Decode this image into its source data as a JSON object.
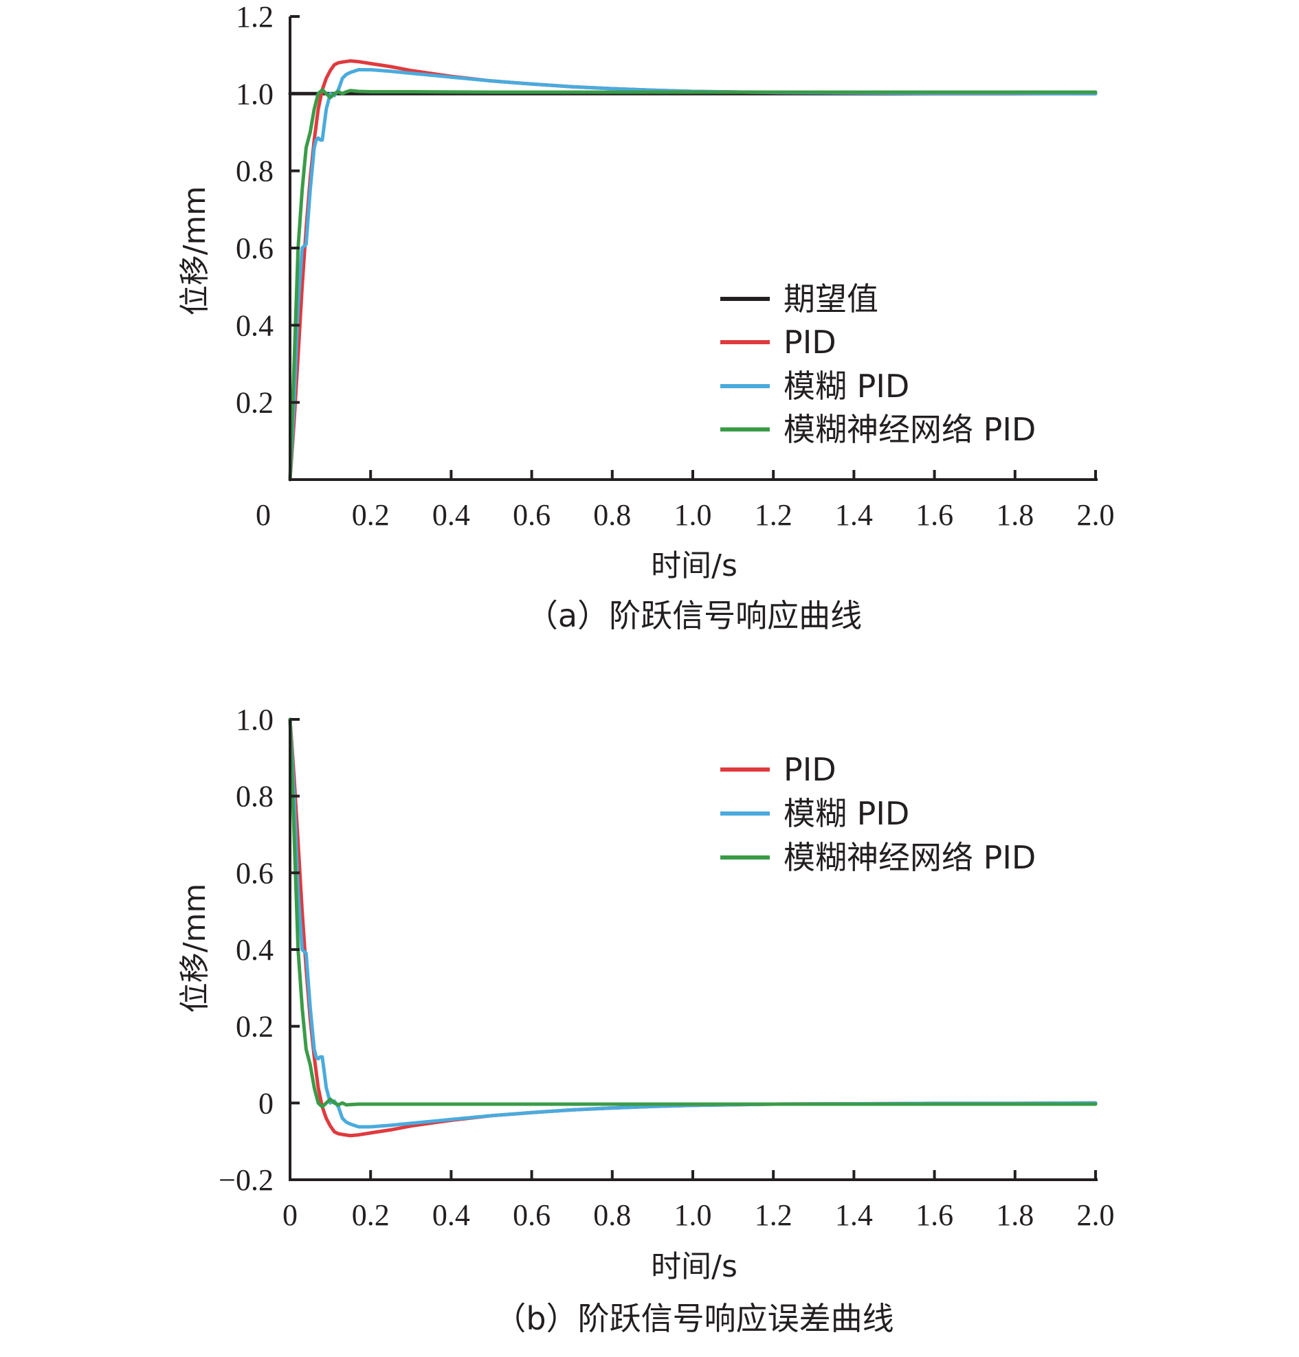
{
  "chart_data": [
    {
      "type": "line",
      "caption": "（a）阶跃信号响应曲线",
      "xlabel": "时间/s",
      "ylabel": "位移/mm",
      "xlim": [
        0,
        2.0
      ],
      "ylim": [
        0,
        1.2
      ],
      "xticks": [
        "0",
        "0.2",
        "0.4",
        "0.6",
        "0.8",
        "1.0",
        "1.2",
        "1.4",
        "1.6",
        "1.8",
        "2.0"
      ],
      "yticks": [
        "0.2",
        "0.4",
        "0.6",
        "0.8",
        "1.0",
        "1.2"
      ],
      "legend_position": "center-right",
      "series": [
        {
          "name": "期望值",
          "color": "#231f20",
          "x": [
            0,
            2.0
          ],
          "y": [
            1.0,
            1.0
          ]
        },
        {
          "name": "PID",
          "color": "#e03a3e",
          "x": [
            0,
            0.01,
            0.02,
            0.03,
            0.04,
            0.05,
            0.06,
            0.07,
            0.08,
            0.09,
            0.1,
            0.11,
            0.12,
            0.13,
            0.15,
            0.17,
            0.2,
            0.25,
            0.3,
            0.4,
            0.5,
            0.6,
            0.7,
            0.8,
            0.9,
            1.0,
            1.2,
            1.4,
            1.6,
            1.8,
            2.0
          ],
          "y": [
            0,
            0.15,
            0.32,
            0.5,
            0.65,
            0.78,
            0.88,
            0.96,
            1.01,
            1.04,
            1.06,
            1.075,
            1.08,
            1.082,
            1.085,
            1.083,
            1.078,
            1.07,
            1.06,
            1.045,
            1.033,
            1.025,
            1.018,
            1.013,
            1.009,
            1.006,
            1.003,
            1.002,
            1.001,
            1.001,
            1.0
          ]
        },
        {
          "name": "模糊 PID",
          "color": "#4aabdd",
          "x": [
            0,
            0.01,
            0.02,
            0.03,
            0.035,
            0.04,
            0.05,
            0.06,
            0.065,
            0.07,
            0.075,
            0.08,
            0.09,
            0.1,
            0.11,
            0.12,
            0.13,
            0.14,
            0.15,
            0.17,
            0.2,
            0.25,
            0.3,
            0.4,
            0.5,
            0.6,
            0.7,
            0.8,
            0.9,
            1.0,
            1.2,
            1.4,
            1.6,
            1.8,
            2.0
          ],
          "y": [
            0,
            0.2,
            0.45,
            0.6,
            0.605,
            0.61,
            0.75,
            0.86,
            0.88,
            0.885,
            0.88,
            0.88,
            0.96,
            1.0,
            0.995,
            1.01,
            1.04,
            1.05,
            1.055,
            1.062,
            1.062,
            1.058,
            1.053,
            1.043,
            1.033,
            1.025,
            1.018,
            1.013,
            1.009,
            1.006,
            1.003,
            1.002,
            1.001,
            1.001,
            1.0
          ]
        },
        {
          "name": "模糊神经网络 PID",
          "color": "#3a9b47",
          "x": [
            0,
            0.01,
            0.02,
            0.03,
            0.04,
            0.05,
            0.06,
            0.07,
            0.08,
            0.09,
            0.1,
            0.11,
            0.12,
            0.13,
            0.14,
            0.15,
            0.17,
            0.2,
            0.3,
            0.5,
            1.0,
            1.5,
            2.0
          ],
          "y": [
            0,
            0.3,
            0.6,
            0.75,
            0.86,
            0.9,
            0.96,
            1.0,
            1.01,
            1.0,
            0.99,
            1.0,
            1.005,
            1.0,
            1.005,
            1.008,
            1.006,
            1.005,
            1.005,
            1.004,
            1.004,
            1.004,
            1.004
          ]
        }
      ]
    },
    {
      "type": "line",
      "caption": "（b）阶跃信号响应误差曲线",
      "xlabel": "时间/s",
      "ylabel": "位移/mm",
      "xlim": [
        0,
        2.0
      ],
      "ylim": [
        -0.2,
        1.0
      ],
      "xticks": [
        "0",
        "0.2",
        "0.4",
        "0.6",
        "0.8",
        "1.0",
        "1.2",
        "1.4",
        "1.6",
        "1.8",
        "2.0"
      ],
      "yticks": [
        "−0.2",
        "0",
        "0.2",
        "0.4",
        "0.6",
        "0.8",
        "1.0"
      ],
      "legend_position": "top-right",
      "series": [
        {
          "name": "PID",
          "color": "#e03a3e",
          "x": [
            0,
            0.01,
            0.02,
            0.03,
            0.04,
            0.05,
            0.06,
            0.07,
            0.08,
            0.09,
            0.1,
            0.11,
            0.12,
            0.13,
            0.15,
            0.17,
            0.2,
            0.25,
            0.3,
            0.4,
            0.5,
            0.6,
            0.7,
            0.8,
            0.9,
            1.0,
            1.2,
            1.4,
            1.6,
            1.8,
            2.0
          ],
          "y": [
            1.0,
            0.85,
            0.68,
            0.5,
            0.35,
            0.22,
            0.12,
            0.04,
            -0.01,
            -0.04,
            -0.06,
            -0.075,
            -0.08,
            -0.082,
            -0.085,
            -0.083,
            -0.078,
            -0.07,
            -0.06,
            -0.045,
            -0.033,
            -0.025,
            -0.018,
            -0.013,
            -0.009,
            -0.006,
            -0.003,
            -0.002,
            -0.001,
            -0.001,
            0.0
          ]
        },
        {
          "name": "模糊 PID",
          "color": "#4aabdd",
          "x": [
            0,
            0.01,
            0.02,
            0.03,
            0.035,
            0.04,
            0.05,
            0.06,
            0.065,
            0.07,
            0.075,
            0.08,
            0.09,
            0.1,
            0.11,
            0.12,
            0.13,
            0.14,
            0.15,
            0.17,
            0.2,
            0.25,
            0.3,
            0.4,
            0.5,
            0.6,
            0.7,
            0.8,
            0.9,
            1.0,
            1.2,
            1.4,
            1.6,
            1.8,
            2.0
          ],
          "y": [
            1.0,
            0.8,
            0.55,
            0.4,
            0.395,
            0.39,
            0.25,
            0.14,
            0.12,
            0.115,
            0.12,
            0.12,
            0.04,
            0.0,
            0.005,
            -0.01,
            -0.04,
            -0.05,
            -0.055,
            -0.062,
            -0.062,
            -0.058,
            -0.053,
            -0.043,
            -0.033,
            -0.025,
            -0.018,
            -0.013,
            -0.009,
            -0.006,
            -0.003,
            -0.002,
            -0.001,
            -0.001,
            0.0
          ]
        },
        {
          "name": "模糊神经网络 PID",
          "color": "#3a9b47",
          "x": [
            0,
            0.01,
            0.02,
            0.03,
            0.04,
            0.05,
            0.06,
            0.07,
            0.08,
            0.09,
            0.1,
            0.11,
            0.12,
            0.13,
            0.14,
            0.15,
            0.17,
            0.2,
            0.3,
            0.5,
            1.0,
            1.5,
            2.0
          ],
          "y": [
            1.0,
            0.7,
            0.4,
            0.25,
            0.14,
            0.1,
            0.04,
            0.0,
            -0.01,
            0.0,
            0.01,
            0.0,
            -0.005,
            0.0,
            -0.005,
            -0.004,
            -0.003,
            -0.003,
            -0.003,
            -0.003,
            -0.003,
            -0.003,
            -0.003
          ]
        }
      ]
    }
  ]
}
